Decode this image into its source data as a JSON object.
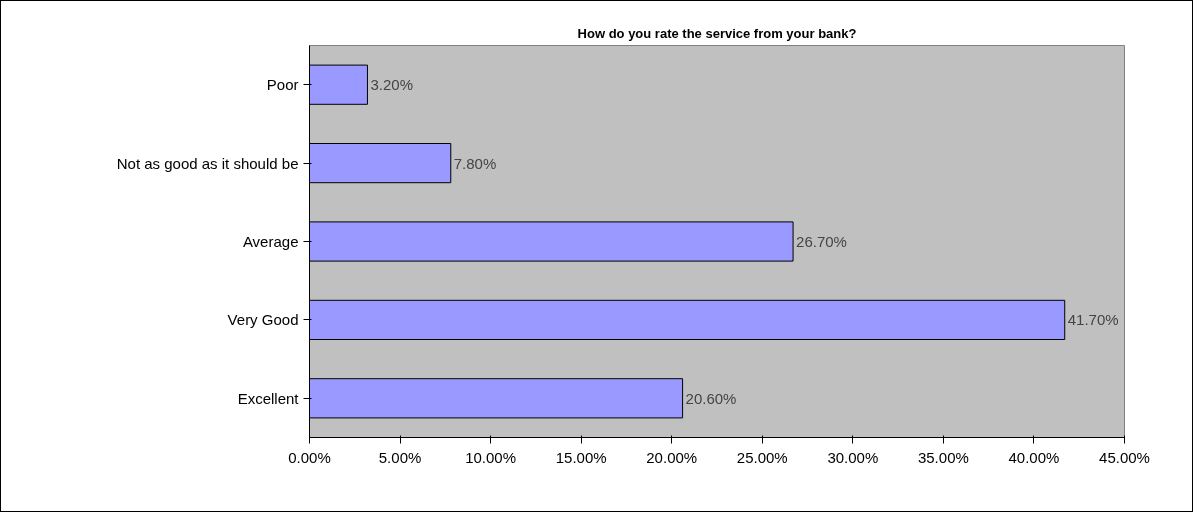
{
  "chart_data": {
    "type": "bar",
    "orientation": "horizontal",
    "title": "How do you rate the service from your bank?",
    "categories": [
      "Poor",
      "Not as good as it should be",
      "Average",
      "Very Good",
      "Excellent"
    ],
    "values": [
      3.2,
      7.8,
      26.7,
      41.7,
      20.6
    ],
    "value_labels": [
      "3.20%",
      "7.80%",
      "26.70%",
      "41.70%",
      "20.60%"
    ],
    "color": "#9999ff",
    "xlim": [
      0,
      45
    ],
    "xticks": [
      {
        "value": 0,
        "label": "0.00%"
      },
      {
        "value": 5,
        "label": "5.00%"
      },
      {
        "value": 10,
        "label": "10.00%"
      },
      {
        "value": 15,
        "label": "15.00%"
      },
      {
        "value": 20,
        "label": "20.00%"
      },
      {
        "value": 25,
        "label": "25.00%"
      },
      {
        "value": 30,
        "label": "30.00%"
      },
      {
        "value": 35,
        "label": "35.00%"
      },
      {
        "value": 40,
        "label": "40.00%"
      },
      {
        "value": 45,
        "label": "45.00%"
      }
    ],
    "grid": false
  }
}
